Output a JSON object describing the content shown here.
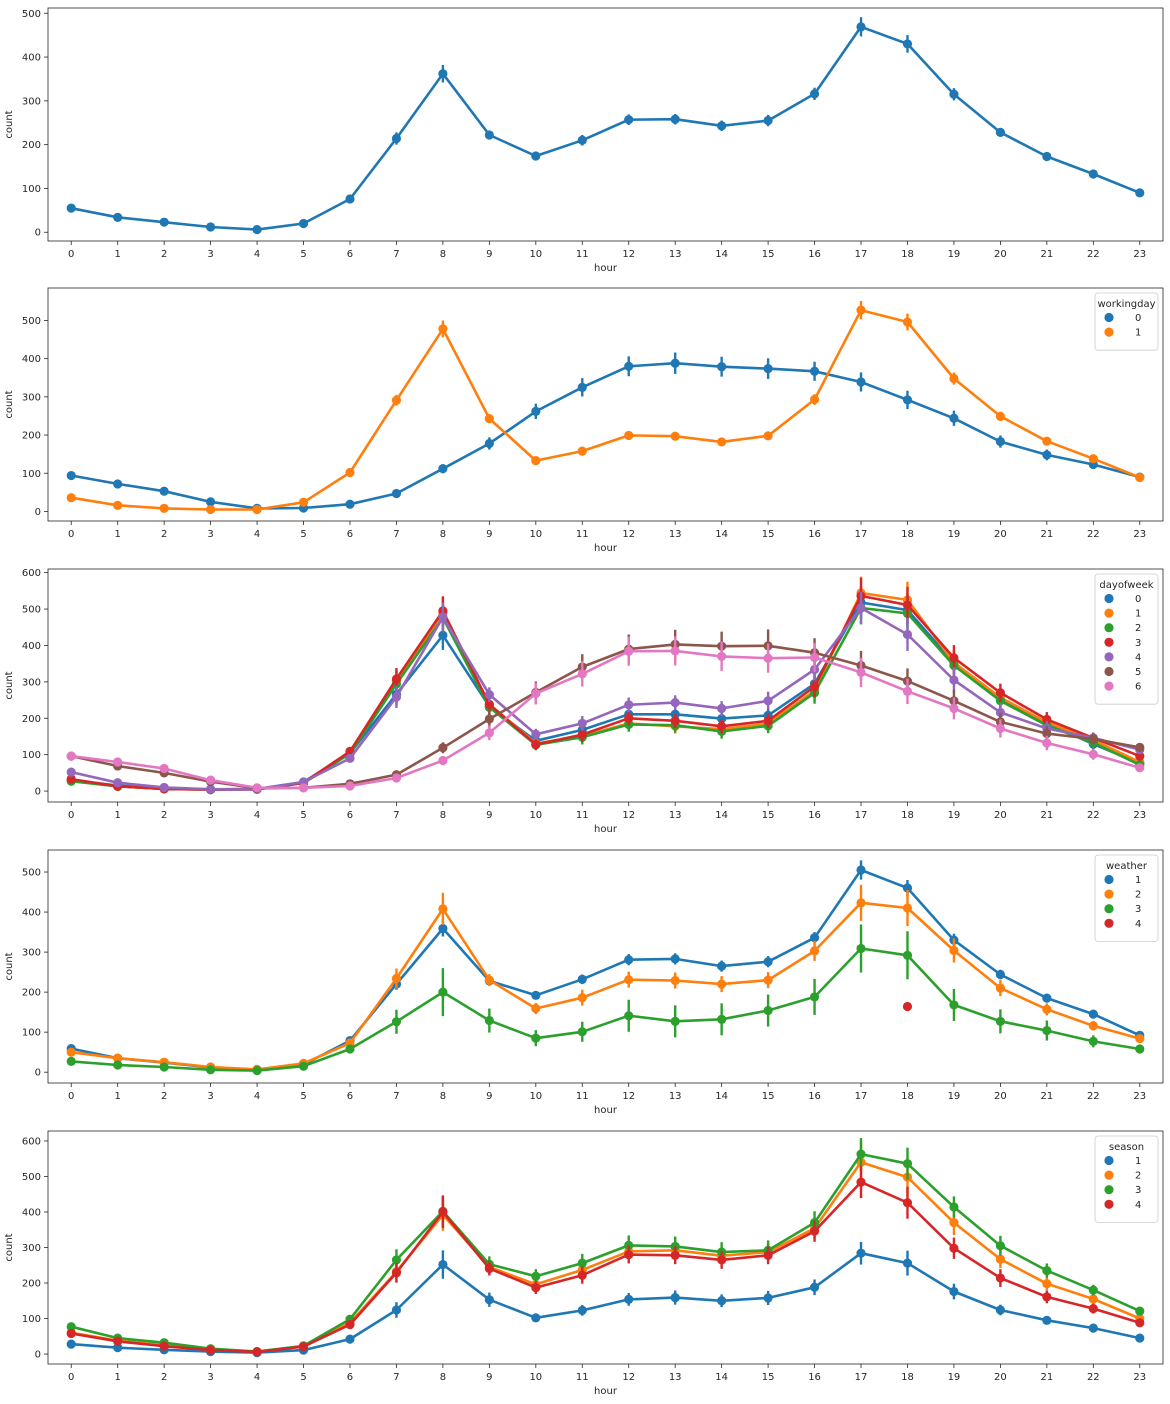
{
  "chart_data": [
    {
      "type": "line",
      "xlabel": "hour",
      "ylabel": "count",
      "x": [
        0,
        1,
        2,
        3,
        4,
        5,
        6,
        7,
        8,
        9,
        10,
        11,
        12,
        13,
        14,
        15,
        16,
        17,
        18,
        19,
        20,
        21,
        22,
        23
      ],
      "ylim": [
        -20,
        512
      ],
      "yticks": [
        0,
        100,
        200,
        300,
        400,
        500
      ],
      "legend": null,
      "series": [
        {
          "name": "",
          "color": "#1f77b4",
          "values": [
            55,
            34,
            23,
            12,
            6,
            20,
            76,
            214,
            362,
            222,
            174,
            210,
            257,
            258,
            243,
            255,
            316,
            469,
            430,
            315,
            228,
            173,
            133,
            90
          ],
          "err": [
            4,
            3,
            2,
            2,
            1,
            3,
            6,
            14,
            20,
            10,
            10,
            12,
            12,
            12,
            12,
            13,
            14,
            22,
            20,
            14,
            10,
            8,
            6,
            5
          ]
        }
      ]
    },
    {
      "type": "line",
      "xlabel": "hour",
      "ylabel": "count",
      "x": [
        0,
        1,
        2,
        3,
        4,
        5,
        6,
        7,
        8,
        9,
        10,
        11,
        12,
        13,
        14,
        15,
        16,
        17,
        18,
        19,
        20,
        21,
        22,
        23
      ],
      "ylim": [
        -25,
        585
      ],
      "yticks": [
        0,
        100,
        200,
        300,
        400,
        500
      ],
      "legend": {
        "title": "workingday",
        "position": "top-right"
      },
      "series": [
        {
          "name": "0",
          "color": "#1f77b4",
          "values": [
            94,
            72,
            53,
            25,
            8,
            9,
            19,
            47,
            112,
            178,
            262,
            325,
            380,
            388,
            379,
            374,
            367,
            339,
            292,
            244,
            183,
            148,
            123,
            90
          ],
          "err": [
            7,
            6,
            5,
            3,
            2,
            2,
            3,
            6,
            12,
            16,
            20,
            24,
            26,
            28,
            26,
            27,
            25,
            25,
            24,
            20,
            16,
            14,
            10,
            8
          ]
        },
        {
          "name": "1",
          "color": "#ff7f0e",
          "values": [
            36,
            16,
            8,
            5,
            5,
            24,
            102,
            291,
            478,
            243,
            133,
            158,
            199,
            197,
            182,
            198,
            293,
            527,
            496,
            348,
            249,
            184,
            138,
            89
          ],
          "err": [
            3,
            2,
            1,
            1,
            1,
            3,
            6,
            14,
            22,
            10,
            6,
            8,
            8,
            8,
            8,
            10,
            14,
            24,
            22,
            16,
            12,
            8,
            6,
            5
          ]
        }
      ]
    },
    {
      "type": "line",
      "xlabel": "hour",
      "ylabel": "count",
      "x": [
        0,
        1,
        2,
        3,
        4,
        5,
        6,
        7,
        8,
        9,
        10,
        11,
        12,
        13,
        14,
        15,
        16,
        17,
        18,
        19,
        20,
        21,
        22,
        23
      ],
      "ylim": [
        -30,
        610
      ],
      "yticks": [
        0,
        100,
        200,
        300,
        400,
        500,
        600
      ],
      "legend": {
        "title": "dayofweek",
        "position": "top-right"
      },
      "series": [
        {
          "name": "0",
          "color": "#1f77b4",
          "values": [
            30,
            15,
            8,
            5,
            6,
            25,
            104,
            266,
            428,
            232,
            138,
            168,
            211,
            211,
            199,
            208,
            295,
            518,
            497,
            352,
            252,
            186,
            129,
            76
          ],
          "err": [
            5,
            4,
            2,
            1,
            1,
            4,
            10,
            30,
            40,
            20,
            15,
            20,
            20,
            20,
            20,
            20,
            30,
            45,
            45,
            35,
            25,
            20,
            15,
            10
          ]
        },
        {
          "name": "1",
          "color": "#ff7f0e",
          "values": [
            28,
            13,
            6,
            4,
            5,
            23,
            105,
            303,
            489,
            238,
            131,
            151,
            186,
            178,
            170,
            185,
            276,
            544,
            525,
            353,
            257,
            189,
            140,
            80
          ],
          "err": [
            5,
            4,
            2,
            1,
            1,
            4,
            10,
            30,
            40,
            20,
            15,
            20,
            20,
            20,
            20,
            20,
            30,
            45,
            50,
            35,
            25,
            20,
            15,
            10
          ]
        },
        {
          "name": "2",
          "color": "#2ca02c",
          "values": [
            27,
            13,
            6,
            4,
            5,
            22,
            103,
            294,
            476,
            230,
            127,
            148,
            183,
            181,
            164,
            179,
            270,
            503,
            488,
            345,
            248,
            180,
            133,
            72
          ],
          "err": [
            5,
            4,
            2,
            1,
            1,
            4,
            10,
            30,
            40,
            20,
            15,
            20,
            20,
            20,
            20,
            20,
            30,
            45,
            45,
            35,
            25,
            20,
            15,
            10
          ]
        },
        {
          "name": "3",
          "color": "#d62728",
          "values": [
            33,
            13,
            6,
            4,
            5,
            23,
            109,
            308,
            495,
            238,
            128,
            155,
            200,
            193,
            178,
            193,
            287,
            536,
            511,
            366,
            270,
            197,
            146,
            96
          ],
          "err": [
            5,
            4,
            2,
            1,
            1,
            4,
            10,
            30,
            40,
            20,
            15,
            20,
            20,
            20,
            20,
            20,
            30,
            50,
            50,
            35,
            25,
            20,
            15,
            10
          ]
        },
        {
          "name": "4",
          "color": "#9467bd",
          "values": [
            52,
            23,
            10,
            5,
            5,
            25,
            90,
            258,
            478,
            265,
            156,
            186,
            237,
            243,
            227,
            248,
            334,
            503,
            430,
            305,
            216,
            172,
            146,
            114
          ],
          "err": [
            6,
            4,
            2,
            1,
            1,
            4,
            10,
            30,
            40,
            20,
            15,
            20,
            20,
            20,
            20,
            25,
            30,
            45,
            45,
            35,
            25,
            20,
            15,
            12
          ]
        },
        {
          "name": "5",
          "color": "#8c564b",
          "values": [
            96,
            69,
            50,
            26,
            8,
            9,
            20,
            45,
            119,
            198,
            271,
            341,
            390,
            403,
            398,
            399,
            380,
            345,
            302,
            248,
            190,
            158,
            143,
            120
          ],
          "err": [
            10,
            8,
            6,
            4,
            2,
            2,
            4,
            8,
            15,
            25,
            30,
            35,
            40,
            40,
            40,
            45,
            40,
            40,
            35,
            30,
            25,
            20,
            15,
            12
          ]
        },
        {
          "name": "6",
          "color": "#e377c2",
          "values": [
            96,
            80,
            62,
            30,
            9,
            9,
            14,
            36,
            84,
            160,
            268,
            322,
            384,
            385,
            370,
            365,
            367,
            326,
            274,
            227,
            172,
            132,
            101,
            64
          ],
          "err": [
            10,
            8,
            6,
            4,
            2,
            2,
            3,
            8,
            12,
            20,
            30,
            35,
            40,
            40,
            40,
            40,
            40,
            40,
            35,
            30,
            25,
            20,
            15,
            10
          ]
        }
      ]
    },
    {
      "type": "line",
      "xlabel": "hour",
      "ylabel": "count",
      "x": [
        0,
        1,
        2,
        3,
        4,
        5,
        6,
        7,
        8,
        9,
        10,
        11,
        12,
        13,
        14,
        15,
        16,
        17,
        18,
        19,
        20,
        21,
        22,
        23
      ],
      "ylim": [
        -27,
        555
      ],
      "yticks": [
        0,
        100,
        200,
        300,
        400,
        500
      ],
      "legend": {
        "title": "weather",
        "position": "top-right"
      },
      "series": [
        {
          "name": "1",
          "color": "#1f77b4",
          "values": [
            59,
            35,
            24,
            12,
            6,
            19,
            79,
            220,
            359,
            228,
            192,
            232,
            281,
            283,
            265,
            276,
            336,
            505,
            460,
            330,
            244,
            185,
            145,
            92
          ],
          "err": [
            5,
            3,
            2,
            1,
            1,
            3,
            6,
            14,
            20,
            10,
            10,
            12,
            14,
            14,
            14,
            14,
            14,
            24,
            20,
            16,
            12,
            8,
            8,
            6
          ]
        },
        {
          "name": "2",
          "color": "#ff7f0e",
          "values": [
            50,
            35,
            25,
            13,
            7,
            22,
            73,
            234,
            408,
            230,
            159,
            186,
            231,
            229,
            220,
            230,
            303,
            423,
            410,
            304,
            210,
            157,
            116,
            84
          ],
          "err": [
            6,
            4,
            3,
            2,
            1,
            3,
            8,
            25,
            40,
            15,
            14,
            20,
            20,
            20,
            20,
            20,
            25,
            45,
            45,
            30,
            20,
            15,
            12,
            8
          ]
        },
        {
          "name": "3",
          "color": "#2ca02c",
          "values": [
            27,
            18,
            13,
            6,
            4,
            15,
            58,
            126,
            200,
            129,
            85,
            101,
            141,
            127,
            132,
            154,
            188,
            309,
            292,
            168,
            127,
            104,
            77,
            58
          ],
          "err": [
            6,
            4,
            3,
            2,
            1,
            4,
            10,
            30,
            60,
            30,
            20,
            25,
            40,
            40,
            40,
            40,
            45,
            60,
            60,
            40,
            30,
            25,
            15,
            10
          ]
        },
        {
          "name": "4",
          "color": "#d62728",
          "values": [
            null,
            null,
            null,
            null,
            null,
            null,
            null,
            null,
            null,
            null,
            null,
            null,
            null,
            null,
            null,
            null,
            null,
            null,
            164,
            null,
            null,
            null,
            null,
            null
          ],
          "err": [
            0,
            0,
            0,
            0,
            0,
            0,
            0,
            0,
            0,
            0,
            0,
            0,
            0,
            0,
            0,
            0,
            0,
            0,
            0,
            0,
            0,
            0,
            0,
            0
          ]
        }
      ]
    },
    {
      "type": "line",
      "xlabel": "hour",
      "ylabel": "count",
      "x": [
        0,
        1,
        2,
        3,
        4,
        5,
        6,
        7,
        8,
        9,
        10,
        11,
        12,
        13,
        14,
        15,
        16,
        17,
        18,
        19,
        20,
        21,
        22,
        23
      ],
      "ylim": [
        -28,
        628
      ],
      "yticks": [
        0,
        100,
        200,
        300,
        400,
        500,
        600
      ],
      "legend": {
        "title": "season",
        "position": "top-right"
      },
      "series": [
        {
          "name": "1",
          "color": "#1f77b4",
          "values": [
            28,
            18,
            12,
            7,
            4,
            11,
            42,
            124,
            252,
            153,
            102,
            123,
            154,
            159,
            150,
            158,
            188,
            284,
            256,
            176,
            124,
            95,
            73,
            45
          ],
          "err": [
            4,
            3,
            2,
            1,
            1,
            2,
            6,
            22,
            40,
            20,
            12,
            15,
            18,
            20,
            18,
            20,
            22,
            32,
            35,
            22,
            15,
            10,
            8,
            6
          ]
        },
        {
          "name": "2",
          "color": "#ff7f0e",
          "values": [
            60,
            38,
            25,
            13,
            7,
            22,
            88,
            232,
            392,
            245,
            196,
            237,
            289,
            292,
            277,
            287,
            354,
            540,
            498,
            370,
            267,
            198,
            155,
            100
          ],
          "err": [
            6,
            4,
            3,
            2,
            1,
            3,
            8,
            28,
            45,
            20,
            18,
            24,
            25,
            25,
            25,
            25,
            30,
            55,
            55,
            35,
            25,
            18,
            14,
            10
          ]
        },
        {
          "name": "3",
          "color": "#2ca02c",
          "values": [
            77,
            45,
            32,
            15,
            7,
            23,
            98,
            265,
            402,
            253,
            219,
            256,
            306,
            303,
            287,
            292,
            370,
            563,
            536,
            414,
            305,
            235,
            180,
            121
          ],
          "err": [
            6,
            4,
            3,
            2,
            1,
            3,
            8,
            30,
            45,
            22,
            20,
            26,
            28,
            28,
            28,
            28,
            32,
            45,
            45,
            30,
            28,
            20,
            15,
            10
          ]
        },
        {
          "name": "4",
          "color": "#d62728",
          "values": [
            58,
            36,
            22,
            11,
            6,
            21,
            83,
            229,
            400,
            241,
            187,
            222,
            280,
            278,
            265,
            278,
            346,
            484,
            426,
            298,
            214,
            161,
            128,
            88
          ],
          "err": [
            6,
            4,
            3,
            2,
            1,
            3,
            8,
            28,
            45,
            20,
            18,
            24,
            25,
            25,
            25,
            25,
            30,
            45,
            45,
            30,
            25,
            18,
            14,
            10
          ]
        }
      ]
    }
  ]
}
